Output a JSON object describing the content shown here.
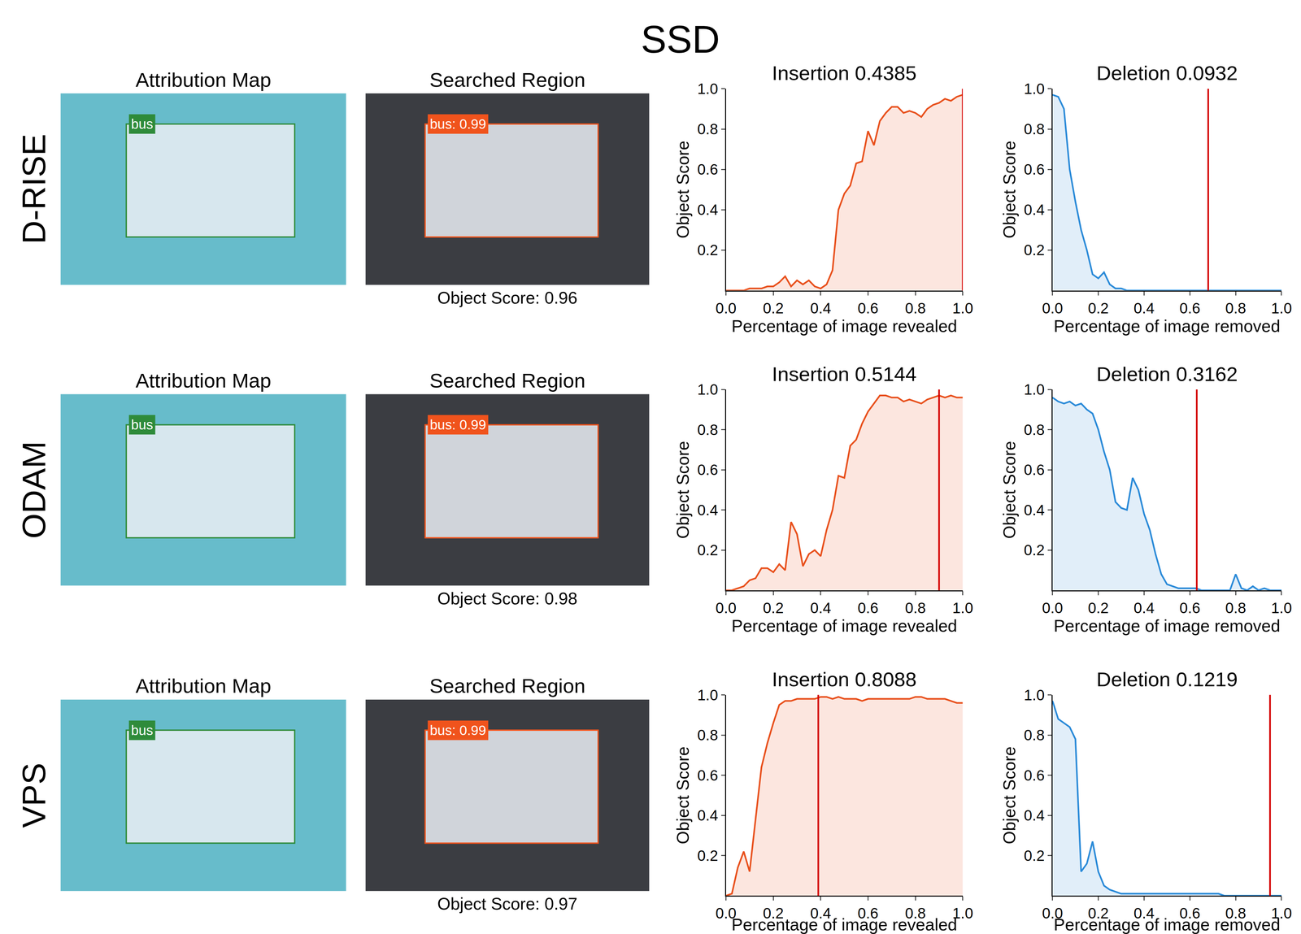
{
  "title": "SSD",
  "rows": [
    {
      "label": "D-RISE",
      "attribution_map": {
        "title": "Attribution Map",
        "box_label": "bus"
      },
      "searched_region": {
        "title": "Searched Region",
        "box_label": "bus: 0.99",
        "caption": "Object Score: 0.96"
      }
    },
    {
      "label": "ODAM",
      "attribution_map": {
        "title": "Attribution Map",
        "box_label": "bus"
      },
      "searched_region": {
        "title": "Searched Region",
        "box_label": "bus: 0.99",
        "caption": "Object Score: 0.98"
      }
    },
    {
      "label": "VPS",
      "attribution_map": {
        "title": "Attribution Map",
        "box_label": "bus"
      },
      "searched_region": {
        "title": "Searched Region",
        "box_label": "bus: 0.99",
        "caption": "Object Score: 0.97"
      }
    }
  ],
  "chart_data": [
    {
      "type": "area",
      "title": "Insertion 0.4385",
      "xlabel": "Percentage of image revealed",
      "ylabel": "Object Score",
      "color": "#e8501c",
      "threshold": 1.0,
      "x": [
        0,
        0.025,
        0.05,
        0.075,
        0.1,
        0.125,
        0.15,
        0.175,
        0.2,
        0.225,
        0.25,
        0.275,
        0.3,
        0.325,
        0.35,
        0.375,
        0.4,
        0.425,
        0.45,
        0.475,
        0.5,
        0.525,
        0.55,
        0.575,
        0.6,
        0.625,
        0.65,
        0.675,
        0.7,
        0.725,
        0.75,
        0.775,
        0.8,
        0.825,
        0.85,
        0.875,
        0.9,
        0.925,
        0.95,
        0.975,
        1.0
      ],
      "values": [
        0,
        0,
        0,
        0,
        0.01,
        0.01,
        0.01,
        0.02,
        0.02,
        0.04,
        0.07,
        0.02,
        0.05,
        0.03,
        0.05,
        0.02,
        0.01,
        0.03,
        0.1,
        0.4,
        0.48,
        0.52,
        0.63,
        0.64,
        0.79,
        0.72,
        0.84,
        0.88,
        0.91,
        0.91,
        0.88,
        0.89,
        0.88,
        0.86,
        0.9,
        0.92,
        0.93,
        0.95,
        0.94,
        0.96,
        0.97
      ],
      "xlim": [
        0,
        1
      ],
      "ylim": [
        0,
        1
      ],
      "xticks": [
        {
          "value": 0,
          "label": "0.0"
        },
        0.2,
        0.4,
        0.6,
        0.8,
        {
          "value": 1,
          "label": "1.0"
        }
      ],
      "yticks": [
        0.2,
        0.4,
        0.6,
        0.8,
        {
          "value": 1,
          "label": "1.0"
        }
      ]
    },
    {
      "type": "area",
      "title": "Deletion 0.0932",
      "xlabel": "Percentage of image removed",
      "ylabel": "Object Score",
      "color": "#2a8ad8",
      "threshold": 0.68,
      "x": [
        0,
        0.025,
        0.05,
        0.075,
        0.1,
        0.125,
        0.15,
        0.175,
        0.2,
        0.225,
        0.25,
        0.275,
        0.3,
        0.325,
        0.35,
        0.375,
        0.4,
        0.425,
        0.45,
        0.475,
        0.5,
        0.525,
        0.55,
        0.575,
        0.6,
        0.625,
        0.65,
        0.675,
        0.7,
        0.725,
        0.75,
        0.775,
        0.8,
        0.825,
        0.85,
        0.875,
        0.9,
        0.925,
        0.95,
        0.975,
        1.0
      ],
      "values": [
        0.97,
        0.96,
        0.9,
        0.6,
        0.44,
        0.3,
        0.2,
        0.08,
        0.06,
        0.09,
        0.03,
        0.01,
        0.01,
        0,
        0,
        0,
        0,
        0,
        0,
        0,
        0,
        0,
        0,
        0,
        0,
        0,
        0,
        0,
        0,
        0,
        0,
        0,
        0,
        0,
        0,
        0,
        0,
        0,
        0,
        0,
        0
      ],
      "xlim": [
        0,
        1
      ],
      "ylim": [
        0,
        1
      ],
      "xticks": [
        {
          "value": 0,
          "label": "0.0"
        },
        0.2,
        0.4,
        0.6,
        0.8,
        {
          "value": 1,
          "label": "1.0"
        }
      ],
      "yticks": [
        0.2,
        0.4,
        0.6,
        0.8,
        {
          "value": 1,
          "label": "1.0"
        }
      ]
    },
    {
      "type": "area",
      "title": "Insertion 0.5144",
      "xlabel": "Percentage of image revealed",
      "ylabel": "Object Score",
      "color": "#e8501c",
      "threshold": 0.9,
      "x": [
        0,
        0.025,
        0.05,
        0.075,
        0.1,
        0.125,
        0.15,
        0.175,
        0.2,
        0.225,
        0.25,
        0.275,
        0.3,
        0.325,
        0.35,
        0.375,
        0.4,
        0.425,
        0.45,
        0.475,
        0.5,
        0.525,
        0.55,
        0.575,
        0.6,
        0.625,
        0.65,
        0.675,
        0.7,
        0.725,
        0.75,
        0.775,
        0.8,
        0.825,
        0.85,
        0.875,
        0.9,
        0.925,
        0.95,
        0.975,
        1.0
      ],
      "values": [
        0,
        0,
        0.01,
        0.02,
        0.05,
        0.06,
        0.11,
        0.11,
        0.09,
        0.13,
        0.1,
        0.34,
        0.28,
        0.12,
        0.18,
        0.2,
        0.17,
        0.3,
        0.4,
        0.57,
        0.56,
        0.72,
        0.75,
        0.83,
        0.89,
        0.93,
        0.97,
        0.97,
        0.96,
        0.96,
        0.94,
        0.95,
        0.94,
        0.93,
        0.95,
        0.96,
        0.97,
        0.96,
        0.97,
        0.96,
        0.96
      ],
      "xlim": [
        0,
        1
      ],
      "ylim": [
        0,
        1
      ],
      "xticks": [
        {
          "value": 0,
          "label": "0.0"
        },
        0.2,
        0.4,
        0.6,
        0.8,
        {
          "value": 1,
          "label": "1.0"
        }
      ],
      "yticks": [
        0.2,
        0.4,
        0.6,
        0.8,
        {
          "value": 1,
          "label": "1.0"
        }
      ]
    },
    {
      "type": "area",
      "title": "Deletion 0.3162",
      "xlabel": "Percentage of image removed",
      "ylabel": "Object Score",
      "color": "#2a8ad8",
      "threshold": 0.63,
      "x": [
        0,
        0.025,
        0.05,
        0.075,
        0.1,
        0.125,
        0.15,
        0.175,
        0.2,
        0.225,
        0.25,
        0.275,
        0.3,
        0.325,
        0.35,
        0.375,
        0.4,
        0.425,
        0.45,
        0.475,
        0.5,
        0.525,
        0.55,
        0.575,
        0.6,
        0.625,
        0.65,
        0.675,
        0.7,
        0.725,
        0.75,
        0.775,
        0.8,
        0.825,
        0.85,
        0.875,
        0.9,
        0.925,
        0.95,
        0.975,
        1.0
      ],
      "values": [
        0.96,
        0.94,
        0.93,
        0.94,
        0.92,
        0.93,
        0.9,
        0.88,
        0.8,
        0.69,
        0.6,
        0.44,
        0.41,
        0.4,
        0.56,
        0.5,
        0.38,
        0.3,
        0.18,
        0.08,
        0.03,
        0.02,
        0.01,
        0.01,
        0.01,
        0.01,
        0,
        0,
        0,
        0,
        0,
        0,
        0.08,
        0.01,
        0,
        0.02,
        0,
        0.01,
        0,
        0,
        0
      ],
      "xlim": [
        0,
        1
      ],
      "ylim": [
        0,
        1
      ],
      "xticks": [
        {
          "value": 0,
          "label": "0.0"
        },
        0.2,
        0.4,
        0.6,
        0.8,
        {
          "value": 1,
          "label": "1.0"
        }
      ],
      "yticks": [
        0.2,
        0.4,
        0.6,
        0.8,
        {
          "value": 1,
          "label": "1.0"
        }
      ]
    },
    {
      "type": "area",
      "title": "Insertion 0.8088",
      "xlabel": "Percentage of image revealed",
      "ylabel": "Object Score",
      "color": "#e8501c",
      "threshold": 0.39,
      "x": [
        0,
        0.025,
        0.05,
        0.075,
        0.1,
        0.125,
        0.15,
        0.175,
        0.2,
        0.225,
        0.25,
        0.275,
        0.3,
        0.325,
        0.35,
        0.375,
        0.4,
        0.425,
        0.45,
        0.475,
        0.5,
        0.525,
        0.55,
        0.575,
        0.6,
        0.625,
        0.65,
        0.675,
        0.7,
        0.725,
        0.75,
        0.775,
        0.8,
        0.825,
        0.85,
        0.875,
        0.9,
        0.925,
        0.95,
        0.975,
        1.0
      ],
      "values": [
        0,
        0.01,
        0.14,
        0.22,
        0.12,
        0.38,
        0.64,
        0.76,
        0.86,
        0.95,
        0.97,
        0.97,
        0.98,
        0.98,
        0.98,
        0.98,
        0.99,
        0.99,
        0.98,
        0.99,
        0.98,
        0.98,
        0.98,
        0.97,
        0.98,
        0.98,
        0.98,
        0.98,
        0.98,
        0.98,
        0.98,
        0.98,
        0.99,
        0.99,
        0.98,
        0.98,
        0.98,
        0.98,
        0.97,
        0.96,
        0.96
      ],
      "xlim": [
        0,
        1
      ],
      "ylim": [
        0,
        1
      ],
      "xticks": [
        {
          "value": 0,
          "label": "0.0"
        },
        0.2,
        0.4,
        0.6,
        0.8,
        {
          "value": 1,
          "label": "1.0"
        }
      ],
      "yticks": [
        0.2,
        0.4,
        0.6,
        0.8,
        {
          "value": 1,
          "label": "1.0"
        }
      ]
    },
    {
      "type": "area",
      "title": "Deletion 0.1219",
      "xlabel": "Percentage of image removed",
      "ylabel": "Object Score",
      "color": "#2a8ad8",
      "threshold": 0.95,
      "x": [
        0,
        0.025,
        0.05,
        0.075,
        0.1,
        0.125,
        0.15,
        0.175,
        0.2,
        0.225,
        0.25,
        0.275,
        0.3,
        0.325,
        0.35,
        0.375,
        0.4,
        0.425,
        0.45,
        0.475,
        0.5,
        0.525,
        0.55,
        0.575,
        0.6,
        0.625,
        0.65,
        0.675,
        0.7,
        0.725,
        0.75,
        0.775,
        0.8,
        0.825,
        0.85,
        0.875,
        0.9,
        0.925,
        0.95,
        0.975,
        1.0
      ],
      "values": [
        0.97,
        0.88,
        0.86,
        0.84,
        0.78,
        0.12,
        0.16,
        0.27,
        0.12,
        0.05,
        0.03,
        0.02,
        0.01,
        0.01,
        0.01,
        0.01,
        0.01,
        0.01,
        0.01,
        0.01,
        0.01,
        0.01,
        0.01,
        0.01,
        0.01,
        0.01,
        0.01,
        0.01,
        0.01,
        0.01,
        0,
        0,
        0,
        0,
        0,
        0,
        0,
        0,
        0,
        0,
        0
      ],
      "xlim": [
        0,
        1
      ],
      "ylim": [
        0,
        1
      ],
      "xticks": [
        {
          "value": 0,
          "label": "0.0"
        },
        0.2,
        0.4,
        0.6,
        0.8,
        {
          "value": 1,
          "label": "1.0"
        }
      ],
      "yticks": [
        0.2,
        0.4,
        0.6,
        0.8,
        {
          "value": 1,
          "label": "1.0"
        }
      ]
    }
  ]
}
